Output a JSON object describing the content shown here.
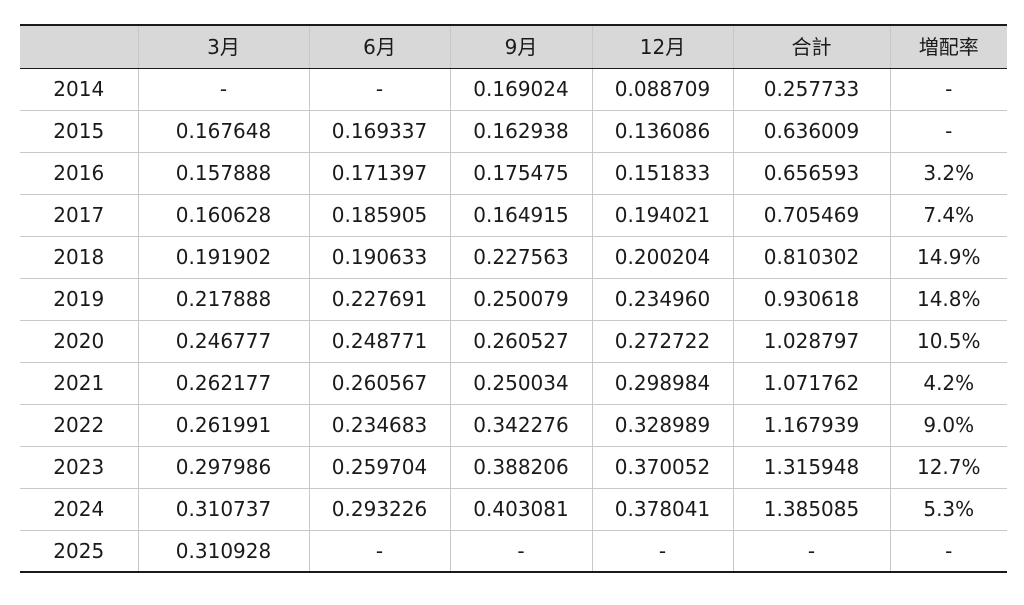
{
  "table": {
    "headers": [
      "",
      "3月",
      "6月",
      "9月",
      "12月",
      "合計",
      "増配率"
    ],
    "rows": [
      [
        "2014",
        "-",
        "-",
        "0.169024",
        "0.088709",
        "0.257733",
        "-"
      ],
      [
        "2015",
        "0.167648",
        "0.169337",
        "0.162938",
        "0.136086",
        "0.636009",
        "-"
      ],
      [
        "2016",
        "0.157888",
        "0.171397",
        "0.175475",
        "0.151833",
        "0.656593",
        "3.2%"
      ],
      [
        "2017",
        "0.160628",
        "0.185905",
        "0.164915",
        "0.194021",
        "0.705469",
        "7.4%"
      ],
      [
        "2018",
        "0.191902",
        "0.190633",
        "0.227563",
        "0.200204",
        "0.810302",
        "14.9%"
      ],
      [
        "2019",
        "0.217888",
        "0.227691",
        "0.250079",
        "0.234960",
        "0.930618",
        "14.8%"
      ],
      [
        "2020",
        "0.246777",
        "0.248771",
        "0.260527",
        "0.272722",
        "1.028797",
        "10.5%"
      ],
      [
        "2021",
        "0.262177",
        "0.260567",
        "0.250034",
        "0.298984",
        "1.071762",
        "4.2%"
      ],
      [
        "2022",
        "0.261991",
        "0.234683",
        "0.342276",
        "0.328989",
        "1.167939",
        "9.0%"
      ],
      [
        "2023",
        "0.297986",
        "0.259704",
        "0.388206",
        "0.370052",
        "1.315948",
        "12.7%"
      ],
      [
        "2024",
        "0.310737",
        "0.293226",
        "0.403081",
        "0.378041",
        "1.385085",
        "5.3%"
      ],
      [
        "2025",
        "0.310928",
        "-",
        "-",
        "-",
        "-",
        "-"
      ]
    ]
  }
}
